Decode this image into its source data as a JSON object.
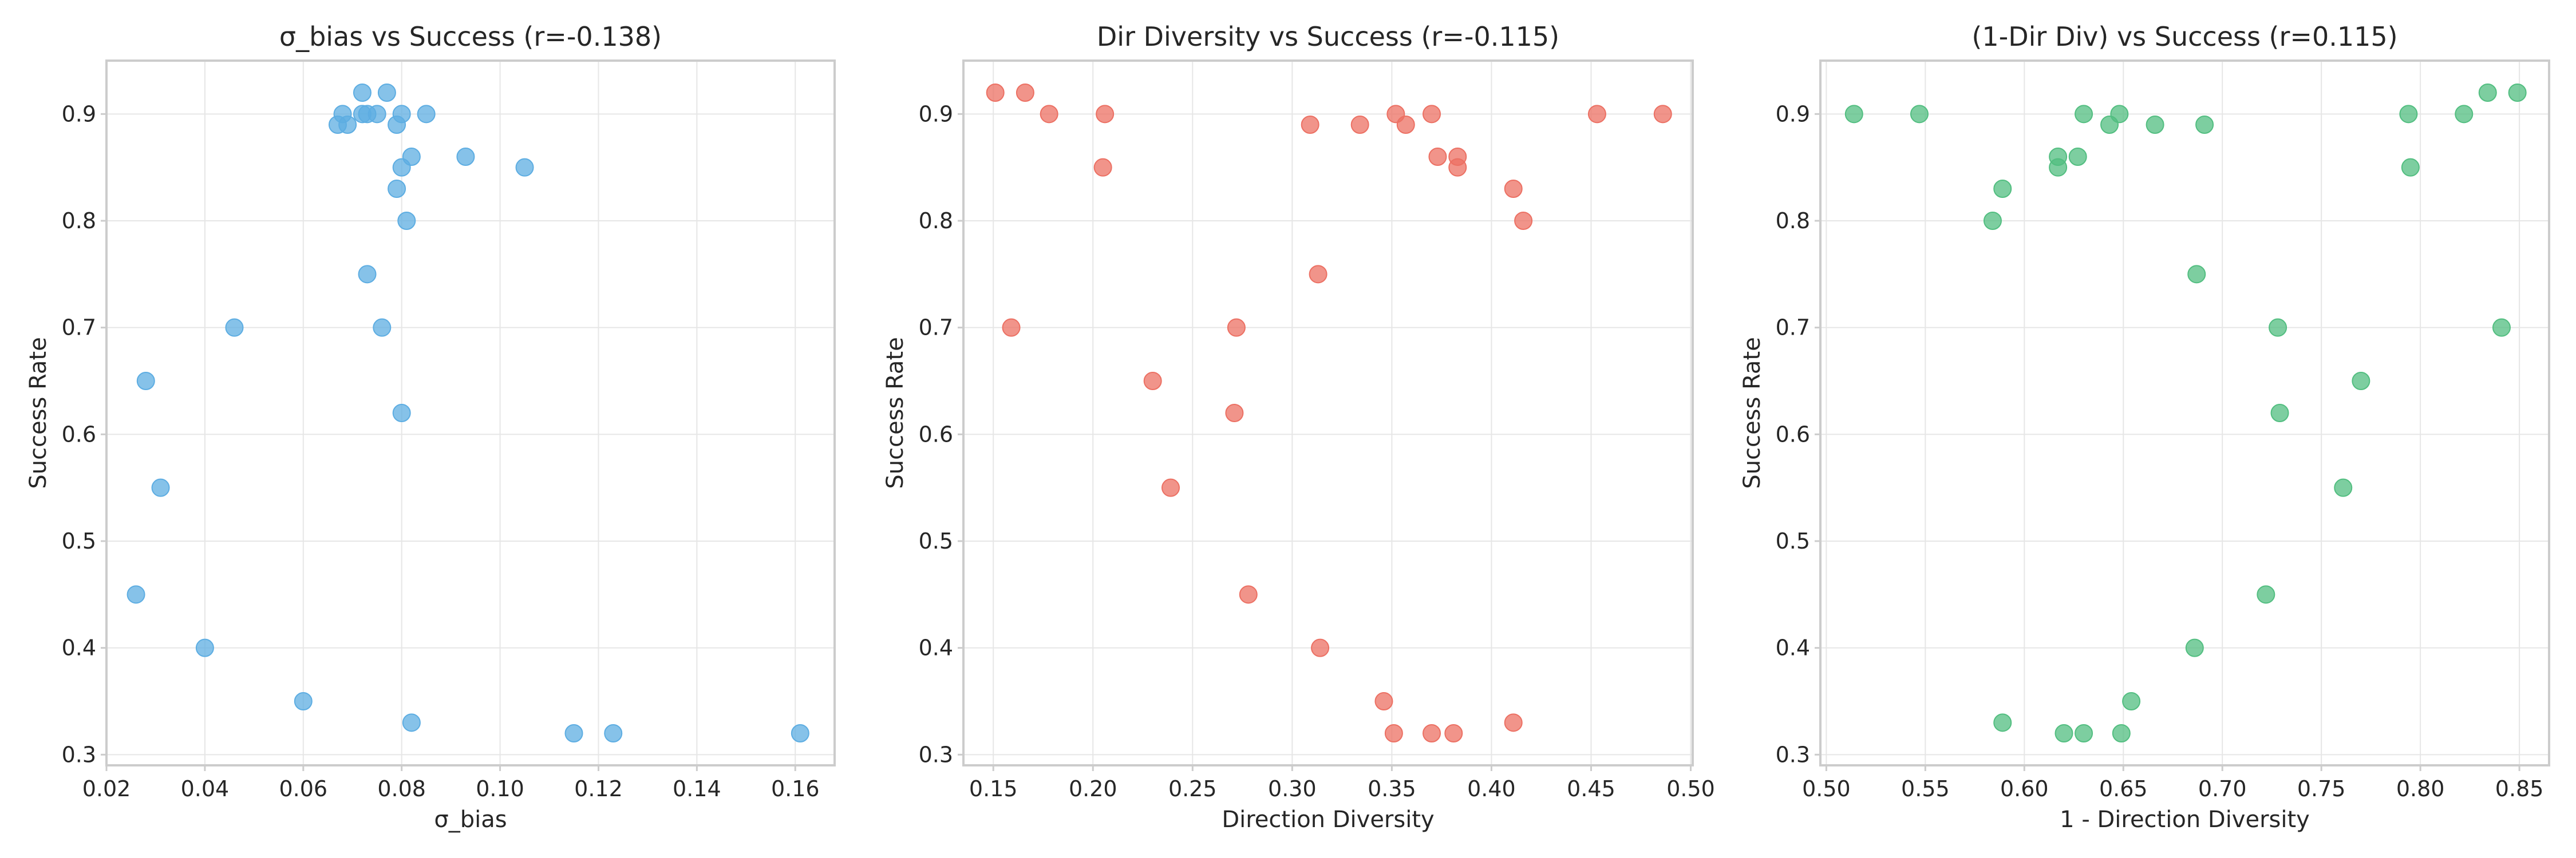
{
  "chart_data": [
    {
      "type": "scatter",
      "title": "σ_bias vs Success (r=-0.138)",
      "xlabel": "σ_bias",
      "ylabel": "Success Rate",
      "xlim": [
        0.02,
        0.168
      ],
      "ylim": [
        0.29,
        0.95
      ],
      "xticks": [
        0.02,
        0.04,
        0.06,
        0.08,
        0.1,
        0.12,
        0.14,
        0.16
      ],
      "xtick_labels": [
        "0.02",
        "0.04",
        "0.06",
        "0.08",
        "0.10",
        "0.12",
        "0.14",
        "0.16"
      ],
      "yticks": [
        0.3,
        0.4,
        0.5,
        0.6,
        0.7,
        0.8,
        0.9
      ],
      "ytick_labels": [
        "0.3",
        "0.4",
        "0.5",
        "0.6",
        "0.7",
        "0.8",
        "0.9"
      ],
      "grid": true,
      "color": "#5dade2",
      "points": [
        [
          0.072,
          0.92
        ],
        [
          0.077,
          0.92
        ],
        [
          0.068,
          0.9
        ],
        [
          0.072,
          0.9
        ],
        [
          0.073,
          0.9
        ],
        [
          0.075,
          0.9
        ],
        [
          0.08,
          0.9
        ],
        [
          0.085,
          0.9
        ],
        [
          0.067,
          0.89
        ],
        [
          0.069,
          0.89
        ],
        [
          0.079,
          0.89
        ],
        [
          0.082,
          0.86
        ],
        [
          0.093,
          0.86
        ],
        [
          0.08,
          0.85
        ],
        [
          0.105,
          0.85
        ],
        [
          0.079,
          0.83
        ],
        [
          0.081,
          0.8
        ],
        [
          0.073,
          0.75
        ],
        [
          0.046,
          0.7
        ],
        [
          0.076,
          0.7
        ],
        [
          0.028,
          0.65
        ],
        [
          0.08,
          0.62
        ],
        [
          0.031,
          0.55
        ],
        [
          0.026,
          0.45
        ],
        [
          0.04,
          0.4
        ],
        [
          0.06,
          0.35
        ],
        [
          0.082,
          0.33
        ],
        [
          0.115,
          0.32
        ],
        [
          0.123,
          0.32
        ],
        [
          0.161,
          0.32
        ]
      ]
    },
    {
      "type": "scatter",
      "title": "Dir Diversity vs Success (r=-0.115)",
      "xlabel": "Direction Diversity",
      "ylabel": "Success Rate",
      "xlim": [
        0.135,
        0.501
      ],
      "ylim": [
        0.29,
        0.95
      ],
      "xticks": [
        0.15,
        0.2,
        0.25,
        0.3,
        0.35,
        0.4,
        0.45,
        0.5
      ],
      "xtick_labels": [
        "0.15",
        "0.20",
        "0.25",
        "0.30",
        "0.35",
        "0.40",
        "0.45",
        "0.50"
      ],
      "yticks": [
        0.3,
        0.4,
        0.5,
        0.6,
        0.7,
        0.8,
        0.9
      ],
      "ytick_labels": [
        "0.3",
        "0.4",
        "0.5",
        "0.6",
        "0.7",
        "0.8",
        "0.9"
      ],
      "grid": true,
      "color": "#ec7063",
      "points": [
        [
          0.151,
          0.92
        ],
        [
          0.166,
          0.92
        ],
        [
          0.178,
          0.9
        ],
        [
          0.206,
          0.9
        ],
        [
          0.352,
          0.9
        ],
        [
          0.37,
          0.9
        ],
        [
          0.453,
          0.9
        ],
        [
          0.486,
          0.9
        ],
        [
          0.309,
          0.89
        ],
        [
          0.334,
          0.89
        ],
        [
          0.357,
          0.89
        ],
        [
          0.373,
          0.86
        ],
        [
          0.383,
          0.86
        ],
        [
          0.205,
          0.85
        ],
        [
          0.383,
          0.85
        ],
        [
          0.411,
          0.83
        ],
        [
          0.416,
          0.8
        ],
        [
          0.313,
          0.75
        ],
        [
          0.159,
          0.7
        ],
        [
          0.272,
          0.7
        ],
        [
          0.23,
          0.65
        ],
        [
          0.271,
          0.62
        ],
        [
          0.239,
          0.55
        ],
        [
          0.278,
          0.45
        ],
        [
          0.314,
          0.4
        ],
        [
          0.346,
          0.35
        ],
        [
          0.351,
          0.32
        ],
        [
          0.37,
          0.32
        ],
        [
          0.381,
          0.32
        ],
        [
          0.411,
          0.33
        ]
      ]
    },
    {
      "type": "scatter",
      "title": "(1-Dir Div) vs Success (r=0.115)",
      "xlabel": "1 - Direction Diversity",
      "ylabel": "Success Rate",
      "xlim": [
        0.497,
        0.865
      ],
      "ylim": [
        0.29,
        0.95
      ],
      "xticks": [
        0.5,
        0.55,
        0.6,
        0.65,
        0.7,
        0.75,
        0.8,
        0.85
      ],
      "xtick_labels": [
        "0.50",
        "0.55",
        "0.60",
        "0.65",
        "0.70",
        "0.75",
        "0.80",
        "0.85"
      ],
      "yticks": [
        0.3,
        0.4,
        0.5,
        0.6,
        0.7,
        0.8,
        0.9
      ],
      "ytick_labels": [
        "0.3",
        "0.4",
        "0.5",
        "0.6",
        "0.7",
        "0.8",
        "0.9"
      ],
      "grid": true,
      "color": "#52be80",
      "points": [
        [
          0.514,
          0.9
        ],
        [
          0.547,
          0.9
        ],
        [
          0.63,
          0.9
        ],
        [
          0.648,
          0.9
        ],
        [
          0.794,
          0.9
        ],
        [
          0.822,
          0.9
        ],
        [
          0.834,
          0.92
        ],
        [
          0.849,
          0.92
        ],
        [
          0.643,
          0.89
        ],
        [
          0.666,
          0.89
        ],
        [
          0.691,
          0.89
        ],
        [
          0.617,
          0.86
        ],
        [
          0.627,
          0.86
        ],
        [
          0.617,
          0.85
        ],
        [
          0.795,
          0.85
        ],
        [
          0.589,
          0.83
        ],
        [
          0.584,
          0.8
        ],
        [
          0.687,
          0.75
        ],
        [
          0.728,
          0.7
        ],
        [
          0.841,
          0.7
        ],
        [
          0.77,
          0.65
        ],
        [
          0.729,
          0.62
        ],
        [
          0.761,
          0.55
        ],
        [
          0.722,
          0.45
        ],
        [
          0.686,
          0.4
        ],
        [
          0.654,
          0.35
        ],
        [
          0.62,
          0.32
        ],
        [
          0.63,
          0.32
        ],
        [
          0.649,
          0.32
        ],
        [
          0.589,
          0.33
        ]
      ]
    }
  ]
}
